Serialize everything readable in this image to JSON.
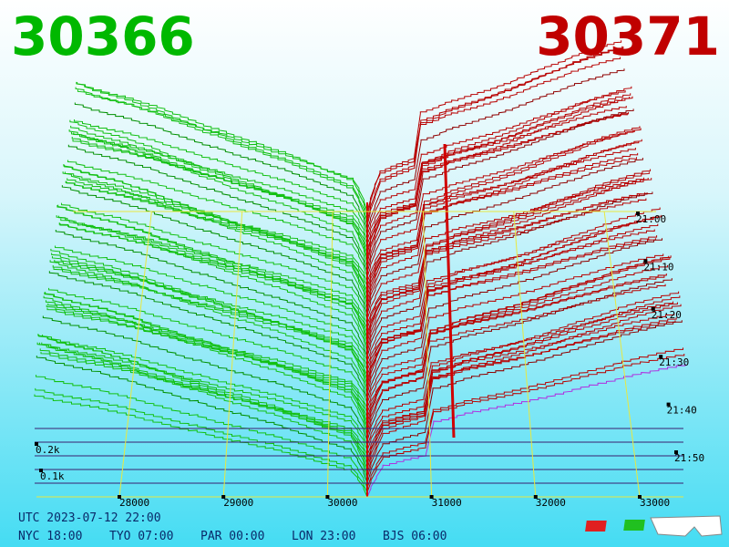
{
  "header": {
    "bid": "30366",
    "ask": "30371"
  },
  "axis": {
    "price_ticks": [
      28000,
      29000,
      30000,
      31000,
      32000,
      33000
    ],
    "time_ticks": [
      "21:00",
      "21:10",
      "21:20",
      "21:30",
      "21:40",
      "21:50"
    ],
    "depth_ticks": [
      "0.2k",
      "0.1k"
    ]
  },
  "footer": {
    "utc": "UTC 2023-07-12 22:00",
    "clocks": [
      "NYC 18:00",
      "TYO 07:00",
      "PAR 00:00",
      "LON 23:00",
      "BJS 06:00"
    ]
  }
}
